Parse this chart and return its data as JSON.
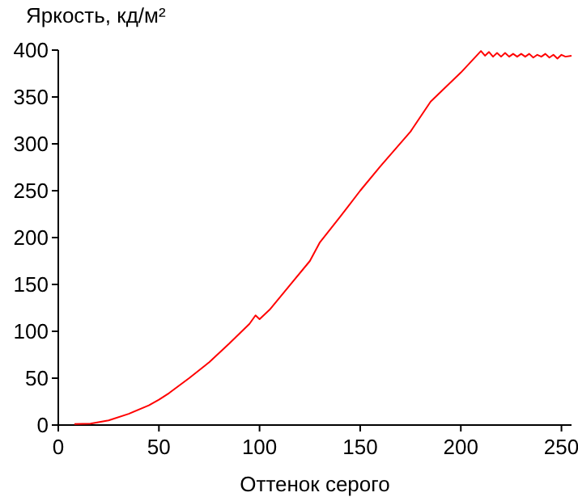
{
  "chart_data": {
    "type": "line",
    "ylabel": "Яркость, кд/м²",
    "xlabel": "Оттенок серого",
    "xlim": [
      0,
      255
    ],
    "xticks": [
      0,
      50,
      100,
      150,
      200,
      250
    ],
    "ylim": [
      0,
      400
    ],
    "yticks": [
      0,
      50,
      100,
      150,
      200,
      250,
      300,
      350,
      400
    ],
    "grid": false,
    "series": [
      {
        "color": "#ff0000",
        "x": [
          8,
          16,
          25,
          35,
          45,
          50,
          55,
          65,
          75,
          85,
          95,
          98,
          100,
          105,
          115,
          125,
          130,
          140,
          150,
          160,
          175,
          185,
          200,
          210,
          212,
          214,
          216,
          218,
          220,
          222,
          224,
          226,
          228,
          230,
          232,
          234,
          236,
          238,
          240,
          242,
          244,
          246,
          248,
          250,
          252,
          255
        ],
        "values": [
          1,
          1.5,
          5,
          12,
          21,
          27,
          34,
          50,
          67,
          87,
          108,
          117,
          113,
          123,
          149,
          175,
          195,
          222,
          250,
          276,
          313,
          345,
          376,
          399,
          394,
          398,
          393,
          397,
          393,
          397,
          393,
          396,
          393,
          396,
          393,
          396,
          392,
          395,
          393,
          396,
          392,
          395,
          391,
          395,
          393,
          394
        ]
      }
    ]
  }
}
